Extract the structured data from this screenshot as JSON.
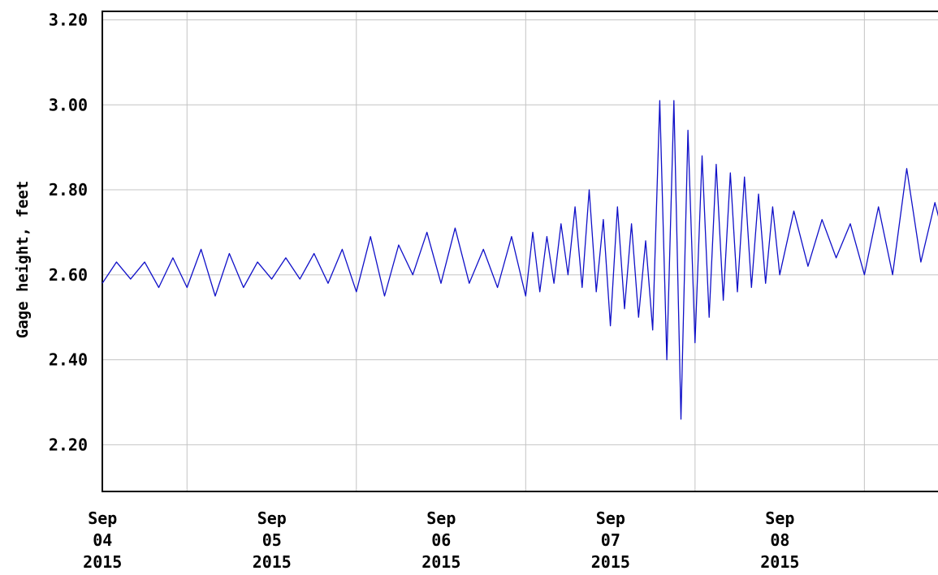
{
  "chart_data": {
    "type": "line",
    "title": "",
    "xlabel": "",
    "ylabel": "Gage height, feet",
    "ylim": [
      2.09,
      3.22
    ],
    "xlim": [
      "2015-09-03T12:00",
      "2015-09-08T14:00"
    ],
    "grid": true,
    "line_color": "#1010c8",
    "y_ticks": [
      "3.20",
      "3.00",
      "2.80",
      "2.60",
      "2.40",
      "2.20"
    ],
    "x_ticks": [
      {
        "date": "2015-09-04",
        "line1": "Sep",
        "line2": "04",
        "line3": "2015"
      },
      {
        "date": "2015-09-05",
        "line1": "Sep",
        "line2": "05",
        "line3": "2015"
      },
      {
        "date": "2015-09-06",
        "line1": "Sep",
        "line2": "06",
        "line3": "2015"
      },
      {
        "date": "2015-09-07",
        "line1": "Sep",
        "line2": "07",
        "line3": "2015"
      },
      {
        "date": "2015-09-08",
        "line1": "Sep",
        "line2": "08",
        "line3": "2015"
      }
    ],
    "series": [
      {
        "x": [
          "2015-09-03T12:00",
          "2015-09-03T14:00",
          "2015-09-03T16:00",
          "2015-09-03T18:00",
          "2015-09-03T20:00",
          "2015-09-03T22:00",
          "2015-09-04T00:00",
          "2015-09-04T02:00",
          "2015-09-04T04:00",
          "2015-09-04T06:00",
          "2015-09-04T08:00",
          "2015-09-04T10:00",
          "2015-09-04T12:00",
          "2015-09-04T14:00",
          "2015-09-04T16:00",
          "2015-09-04T18:00",
          "2015-09-04T20:00",
          "2015-09-04T22:00",
          "2015-09-05T00:00",
          "2015-09-05T02:00",
          "2015-09-05T04:00",
          "2015-09-05T06:00",
          "2015-09-05T08:00",
          "2015-09-05T10:00",
          "2015-09-05T12:00",
          "2015-09-05T14:00",
          "2015-09-05T16:00",
          "2015-09-05T18:00",
          "2015-09-05T20:00",
          "2015-09-05T22:00",
          "2015-09-06T00:00",
          "2015-09-06T01:00",
          "2015-09-06T02:00",
          "2015-09-06T03:00",
          "2015-09-06T04:00",
          "2015-09-06T05:00",
          "2015-09-06T06:00",
          "2015-09-06T07:00",
          "2015-09-06T08:00",
          "2015-09-06T09:00",
          "2015-09-06T10:00",
          "2015-09-06T11:00",
          "2015-09-06T12:00",
          "2015-09-06T13:00",
          "2015-09-06T14:00",
          "2015-09-06T15:00",
          "2015-09-06T16:00",
          "2015-09-06T17:00",
          "2015-09-06T18:00",
          "2015-09-06T19:00",
          "2015-09-06T20:00",
          "2015-09-06T21:00",
          "2015-09-06T22:00",
          "2015-09-06T23:00",
          "2015-09-07T00:00",
          "2015-09-07T01:00",
          "2015-09-07T02:00",
          "2015-09-07T03:00",
          "2015-09-07T04:00",
          "2015-09-07T05:00",
          "2015-09-07T06:00",
          "2015-09-07T07:00",
          "2015-09-07T08:00",
          "2015-09-07T09:00",
          "2015-09-07T10:00",
          "2015-09-07T11:00",
          "2015-09-07T12:00",
          "2015-09-07T14:00",
          "2015-09-07T16:00",
          "2015-09-07T18:00",
          "2015-09-07T20:00",
          "2015-09-07T22:00",
          "2015-09-08T00:00",
          "2015-09-08T02:00",
          "2015-09-08T04:00",
          "2015-09-08T06:00",
          "2015-09-08T08:00",
          "2015-09-08T10:00",
          "2015-09-08T12:00",
          "2015-09-08T14:00"
        ],
        "values": [
          2.58,
          2.63,
          2.59,
          2.63,
          2.57,
          2.64,
          2.57,
          2.66,
          2.55,
          2.65,
          2.57,
          2.63,
          2.59,
          2.64,
          2.59,
          2.65,
          2.58,
          2.66,
          2.56,
          2.69,
          2.55,
          2.67,
          2.6,
          2.7,
          2.58,
          2.71,
          2.58,
          2.66,
          2.57,
          2.69,
          2.55,
          2.7,
          2.56,
          2.69,
          2.58,
          2.72,
          2.6,
          2.76,
          2.57,
          2.8,
          2.56,
          2.73,
          2.48,
          2.76,
          2.52,
          2.72,
          2.5,
          2.68,
          2.47,
          3.01,
          2.4,
          3.01,
          2.26,
          2.94,
          2.44,
          2.88,
          2.5,
          2.86,
          2.54,
          2.84,
          2.56,
          2.83,
          2.57,
          2.79,
          2.58,
          2.76,
          2.6,
          2.75,
          2.62,
          2.73,
          2.64,
          2.72,
          2.6,
          2.76,
          2.6,
          2.85,
          2.63,
          2.77,
          2.64,
          2.73
        ]
      }
    ]
  }
}
